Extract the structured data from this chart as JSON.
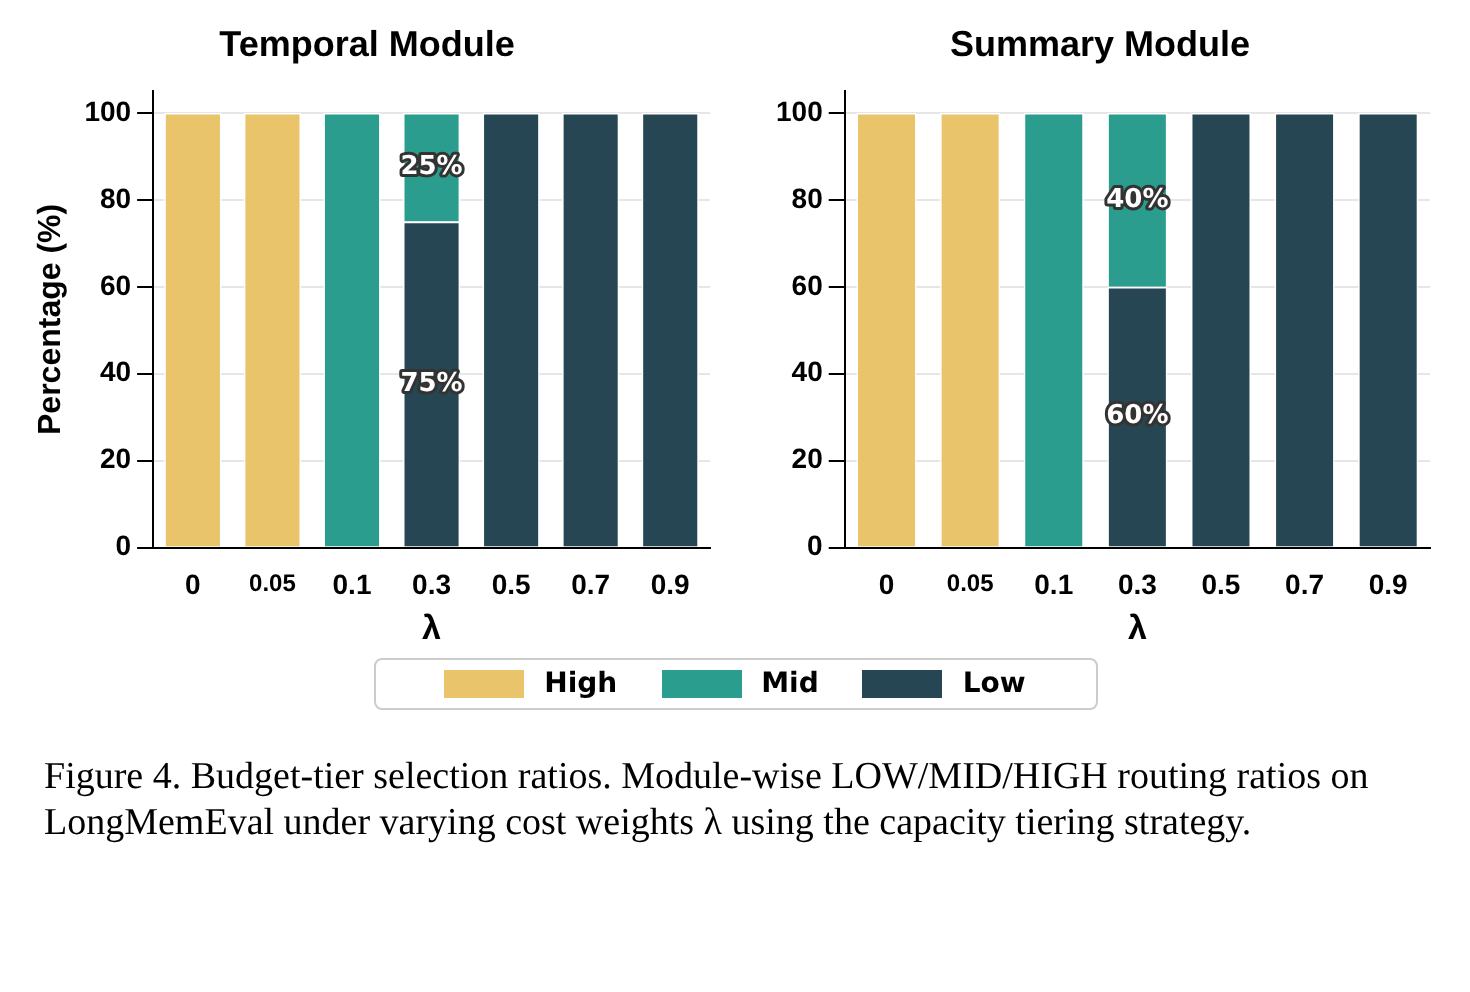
{
  "chart_data": [
    {
      "type": "bar",
      "title": "Temporal Module",
      "xlabel": "λ",
      "ylabel": "Percentage (%)",
      "categories": [
        "0",
        "0.05",
        "0.1",
        "0.3",
        "0.5",
        "0.7",
        "0.9"
      ],
      "stacked": true,
      "ylim": [
        0,
        105
      ],
      "yticks": [
        0,
        20,
        40,
        60,
        80,
        100
      ],
      "grid": "y",
      "legend": "bottom",
      "series": [
        {
          "name": "Low",
          "color": "#264653",
          "values": [
            0,
            0,
            0,
            75,
            100,
            100,
            100
          ],
          "value_labels": [
            null,
            null,
            null,
            "75%",
            null,
            null,
            null
          ]
        },
        {
          "name": "Mid",
          "color": "#2a9d8f",
          "values": [
            0,
            0,
            100,
            25,
            0,
            0,
            0
          ],
          "value_labels": [
            null,
            null,
            null,
            "25%",
            null,
            null,
            null
          ]
        },
        {
          "name": "High",
          "color": "#e9c46a",
          "values": [
            100,
            100,
            0,
            0,
            0,
            0,
            0
          ]
        }
      ],
      "annotations": [
        "Figure 4. Budget-tier selection ratios. Module-wise LOW/MID/HIGH routing ratios on LongMemEval under varying cost weights λ using the capacity tiering strategy."
      ]
    },
    {
      "type": "bar",
      "title": "Summary Module",
      "xlabel": "λ",
      "categories": [
        "0",
        "0.05",
        "0.1",
        "0.3",
        "0.5",
        "0.7",
        "0.9"
      ],
      "stacked": true,
      "ylim": [
        0,
        105
      ],
      "yticks": [
        0,
        20,
        40,
        60,
        80,
        100
      ],
      "grid": "y",
      "series": [
        {
          "color": "#264653",
          "values": [
            0,
            0,
            0,
            60,
            100,
            100,
            100
          ],
          "value_labels": [
            null,
            null,
            null,
            "60%",
            null,
            null,
            null
          ]
        },
        {
          "color": "#2a9d8f",
          "values": [
            0,
            0,
            100,
            40,
            0,
            0,
            0
          ],
          "value_labels": [
            null,
            null,
            null,
            "40%",
            null,
            null,
            null
          ]
        },
        {
          "color": "#e9c46a",
          "values": [
            100,
            100,
            0,
            0,
            0,
            0,
            0
          ]
        }
      ]
    }
  ]
}
